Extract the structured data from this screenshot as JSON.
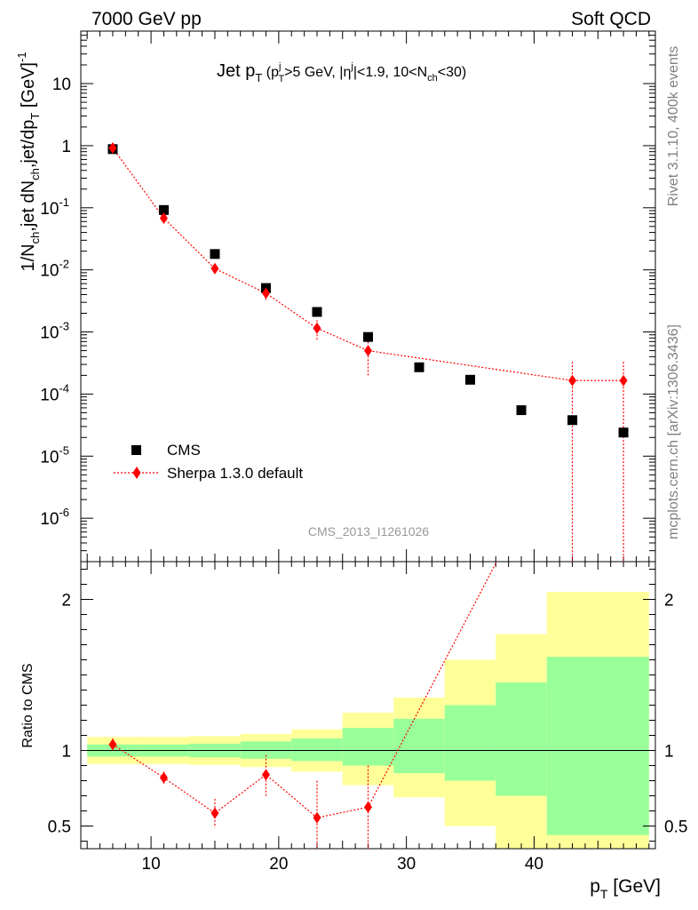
{
  "header": {
    "left": "7000 GeV pp",
    "right": "Soft QCD"
  },
  "side_texts": {
    "rivet": "Rivet 3.1.10,  400k events",
    "mcplots": "mcplots.cern.ch [arXiv:1306.3436]"
  },
  "watermark": "CMS_2013_I1261026",
  "colors": {
    "data": "#000000",
    "mc": "#ff0000",
    "band_inner": "#99ff99",
    "band_outer": "#ffff99"
  },
  "chart_data": [
    {
      "type": "scatter",
      "title": "Jet pT (pTj>5 GeV, |ηj|<1.9, 10<Nch<30)",
      "xlabel": "pT [GeV]",
      "ylabel": "1/Nch,jet dNch,jet/dpT [GeV]^-1",
      "xlim": [
        4.5,
        49.5
      ],
      "ylim": [
        2e-07,
        70
      ],
      "log_y": true,
      "legend_position": "bottom-left",
      "series": [
        {
          "name": "CMS",
          "marker": "square",
          "x": [
            7,
            11,
            15,
            19,
            23,
            27,
            31,
            35,
            39,
            43,
            47
          ],
          "y": [
            0.88,
            0.092,
            0.018,
            0.0051,
            0.0021,
            0.00083,
            0.00027,
            0.00017,
            5.5e-05,
            3.8e-05,
            2.4e-05
          ]
        },
        {
          "name": "Sherpa 1.3.0 default",
          "marker": "diamond",
          "line": "dotted",
          "x": [
            7,
            11,
            15,
            19,
            23,
            27,
            43,
            47
          ],
          "y": [
            0.92,
            0.068,
            0.0105,
            0.0042,
            0.00115,
            0.0005,
            0.000165,
            0.000165
          ],
          "err_low": [
            0.88,
            0.061,
            0.0094,
            0.0033,
            0.00075,
            0.0002,
            2e-07,
            2e-07
          ],
          "err_high": [
            0.96,
            0.075,
            0.0116,
            0.0051,
            0.00155,
            0.0008,
            0.00033,
            0.00033
          ]
        }
      ]
    },
    {
      "type": "line",
      "ylabel": "Ratio to CMS",
      "xlabel": "pT [GeV]",
      "xlim": [
        4.5,
        49.5
      ],
      "ylim": [
        0.35,
        2.25
      ],
      "bands": {
        "edges": [
          5,
          9,
          13,
          17,
          21,
          25,
          29,
          33,
          37,
          41,
          49
        ],
        "inner_low": [
          0.96,
          0.96,
          0.955,
          0.945,
          0.93,
          0.9,
          0.85,
          0.8,
          0.7,
          0.44
        ],
        "inner_high": [
          1.04,
          1.04,
          1.045,
          1.06,
          1.08,
          1.15,
          1.21,
          1.3,
          1.45,
          1.62
        ],
        "outer_low": [
          0.91,
          0.91,
          0.905,
          0.89,
          0.86,
          0.77,
          0.69,
          0.5,
          0.33,
          0.33
        ],
        "outer_high": [
          1.09,
          1.09,
          1.095,
          1.11,
          1.14,
          1.25,
          1.35,
          1.6,
          1.77,
          2.05
        ]
      },
      "series": [
        {
          "name": "Sherpa 1.3.0 default",
          "x": [
            7,
            11,
            15,
            19,
            23,
            27
          ],
          "y": [
            1.04,
            0.82,
            0.585,
            0.84,
            0.555,
            0.625
          ],
          "err_low": [
            1.0,
            0.78,
            0.49,
            0.7,
            0.3,
            0.3
          ],
          "err_high": [
            1.08,
            0.86,
            0.68,
            0.97,
            0.8,
            0.9
          ],
          "line_to": [
            38,
            2.4
          ]
        }
      ]
    }
  ]
}
